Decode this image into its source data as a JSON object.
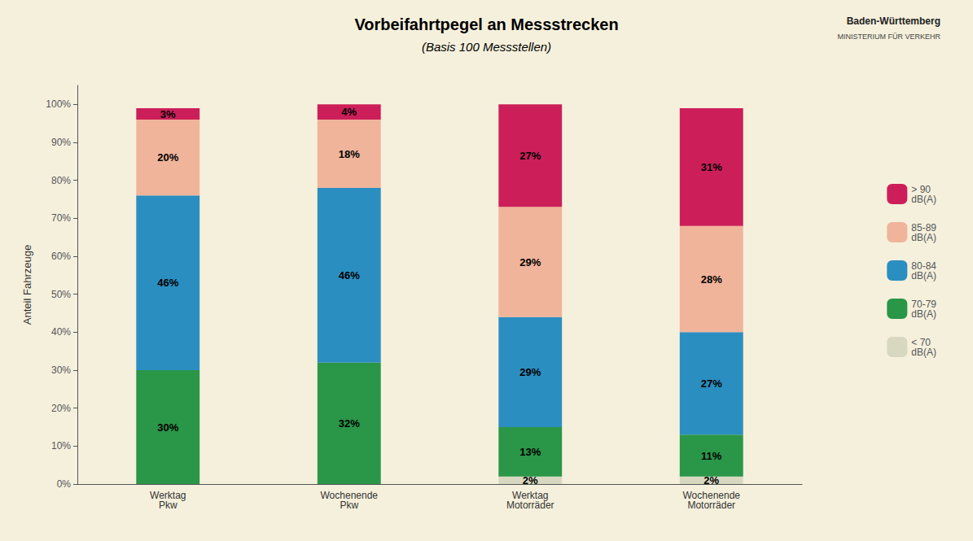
{
  "chart_data": {
    "type": "bar",
    "stacked": true,
    "title": "Vorbeifahrtpegel an Messstrecken",
    "subtitle": "(Basis 100 Messstellen)",
    "ylabel": "Anteil Fahrzeuge",
    "categories": [
      "Werktag\nPkw",
      "Wochenende\nPkw",
      "Werktag\nMotorräder",
      "Wochenende\nMotorräder"
    ],
    "series": [
      {
        "name": "< 70\ndB(A)",
        "color": "#d8d8c0",
        "values": [
          0,
          0,
          2,
          2
        ],
        "value_labels": [
          null,
          null,
          "2%",
          "2%"
        ]
      },
      {
        "name": "70-79\ndB(A)",
        "color": "#2a9648",
        "values": [
          30,
          32,
          13,
          11
        ],
        "value_labels": [
          "30%",
          "32%",
          "13%",
          "11%"
        ]
      },
      {
        "name": "80-84\ndB(A)",
        "color": "#2b8ec0",
        "values": [
          46,
          46,
          29,
          27
        ],
        "value_labels": [
          "46%",
          "46%",
          "29%",
          "27%"
        ]
      },
      {
        "name": "85-89\ndB(A)",
        "color": "#f0b49a",
        "values": [
          20,
          18,
          29,
          28
        ],
        "value_labels": [
          "20%",
          "18%",
          "29%",
          "28%"
        ]
      },
      {
        "name": "> 90\ndB(A)",
        "color": "#cc1f5a",
        "values": [
          3,
          4,
          27,
          31
        ],
        "value_labels": [
          "3%",
          "4%",
          "27%",
          "31%"
        ]
      }
    ],
    "ylim": [
      0,
      105
    ],
    "yticks": [
      {
        "value": 0,
        "label": "0%"
      },
      {
        "value": 10,
        "label": "10%"
      },
      {
        "value": 20,
        "label": "20%"
      },
      {
        "value": 30,
        "label": "30%"
      },
      {
        "value": 40,
        "label": "40%"
      },
      {
        "value": 50,
        "label": "50%"
      },
      {
        "value": 60,
        "label": "60%"
      },
      {
        "value": 70,
        "label": "70%"
      },
      {
        "value": 80,
        "label": "80%"
      },
      {
        "value": 90,
        "label": "90%"
      },
      {
        "value": 100,
        "label": "100%"
      }
    ],
    "grid": false,
    "legend": "right",
    "data_labels": true,
    "annotations": [
      "Baden-Württemberg",
      "MINISTERIUM FÜR VERKEHR"
    ]
  }
}
